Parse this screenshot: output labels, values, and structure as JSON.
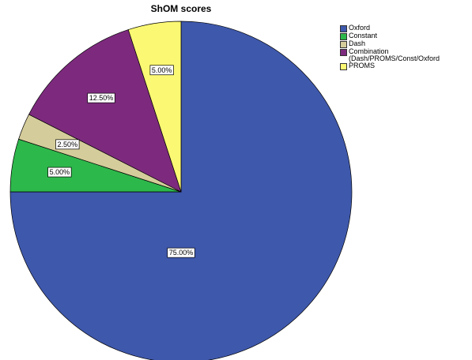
{
  "chart_data": {
    "type": "pie",
    "title": "ShOM scores",
    "categories": [
      "Oxford",
      "Constant",
      "Dash",
      "Combination (Dash/PROMS/Const/Oxford",
      "PROMS"
    ],
    "values": [
      75,
      5,
      2.5,
      12.5,
      5
    ],
    "value_labels": [
      "75.00%",
      "5.00%",
      "2.50%",
      "12.50%",
      "5.00%"
    ],
    "colors": [
      "#3e58ac",
      "#2db84b",
      "#d4cc9a",
      "#7d2a7e",
      "#fbf873"
    ],
    "legend": "top-right"
  }
}
